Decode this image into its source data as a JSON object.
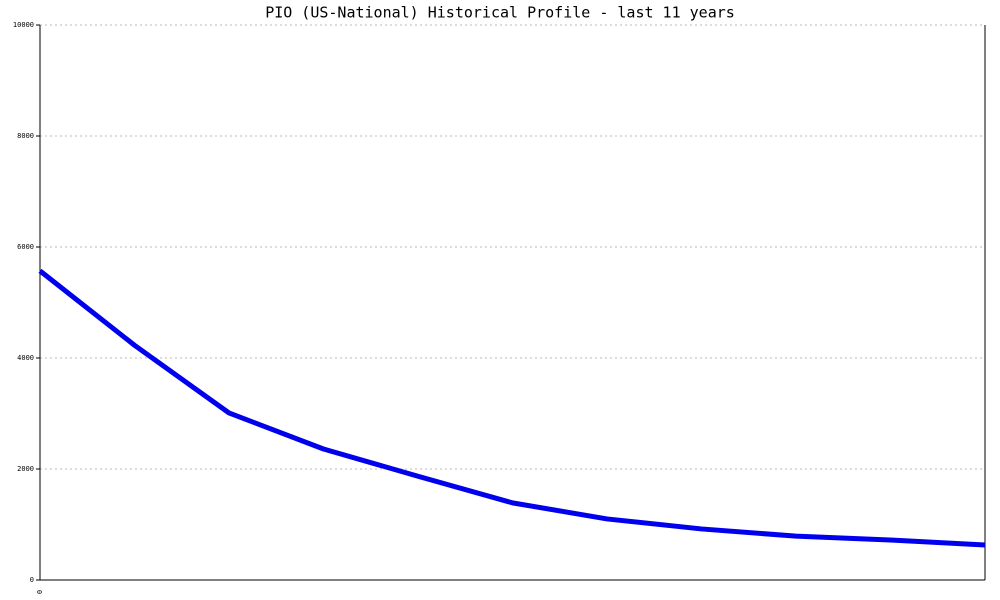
{
  "chart_data": {
    "type": "line",
    "title": "PIO (US-National) Historical Profile - last 11 years",
    "categories": [
      "0",
      null,
      null,
      null,
      null,
      null,
      null,
      null,
      null,
      null,
      null
    ],
    "series": [
      {
        "name": "PIO",
        "color": "#0000ee",
        "values": [
          5570,
          4230,
          3010,
          2360,
          1870,
          1390,
          1100,
          920,
          790,
          720,
          630
        ]
      }
    ],
    "ylim": [
      0,
      10000
    ],
    "yticks": [
      0,
      2000,
      4000,
      6000,
      8000,
      10000
    ],
    "grid": true
  }
}
